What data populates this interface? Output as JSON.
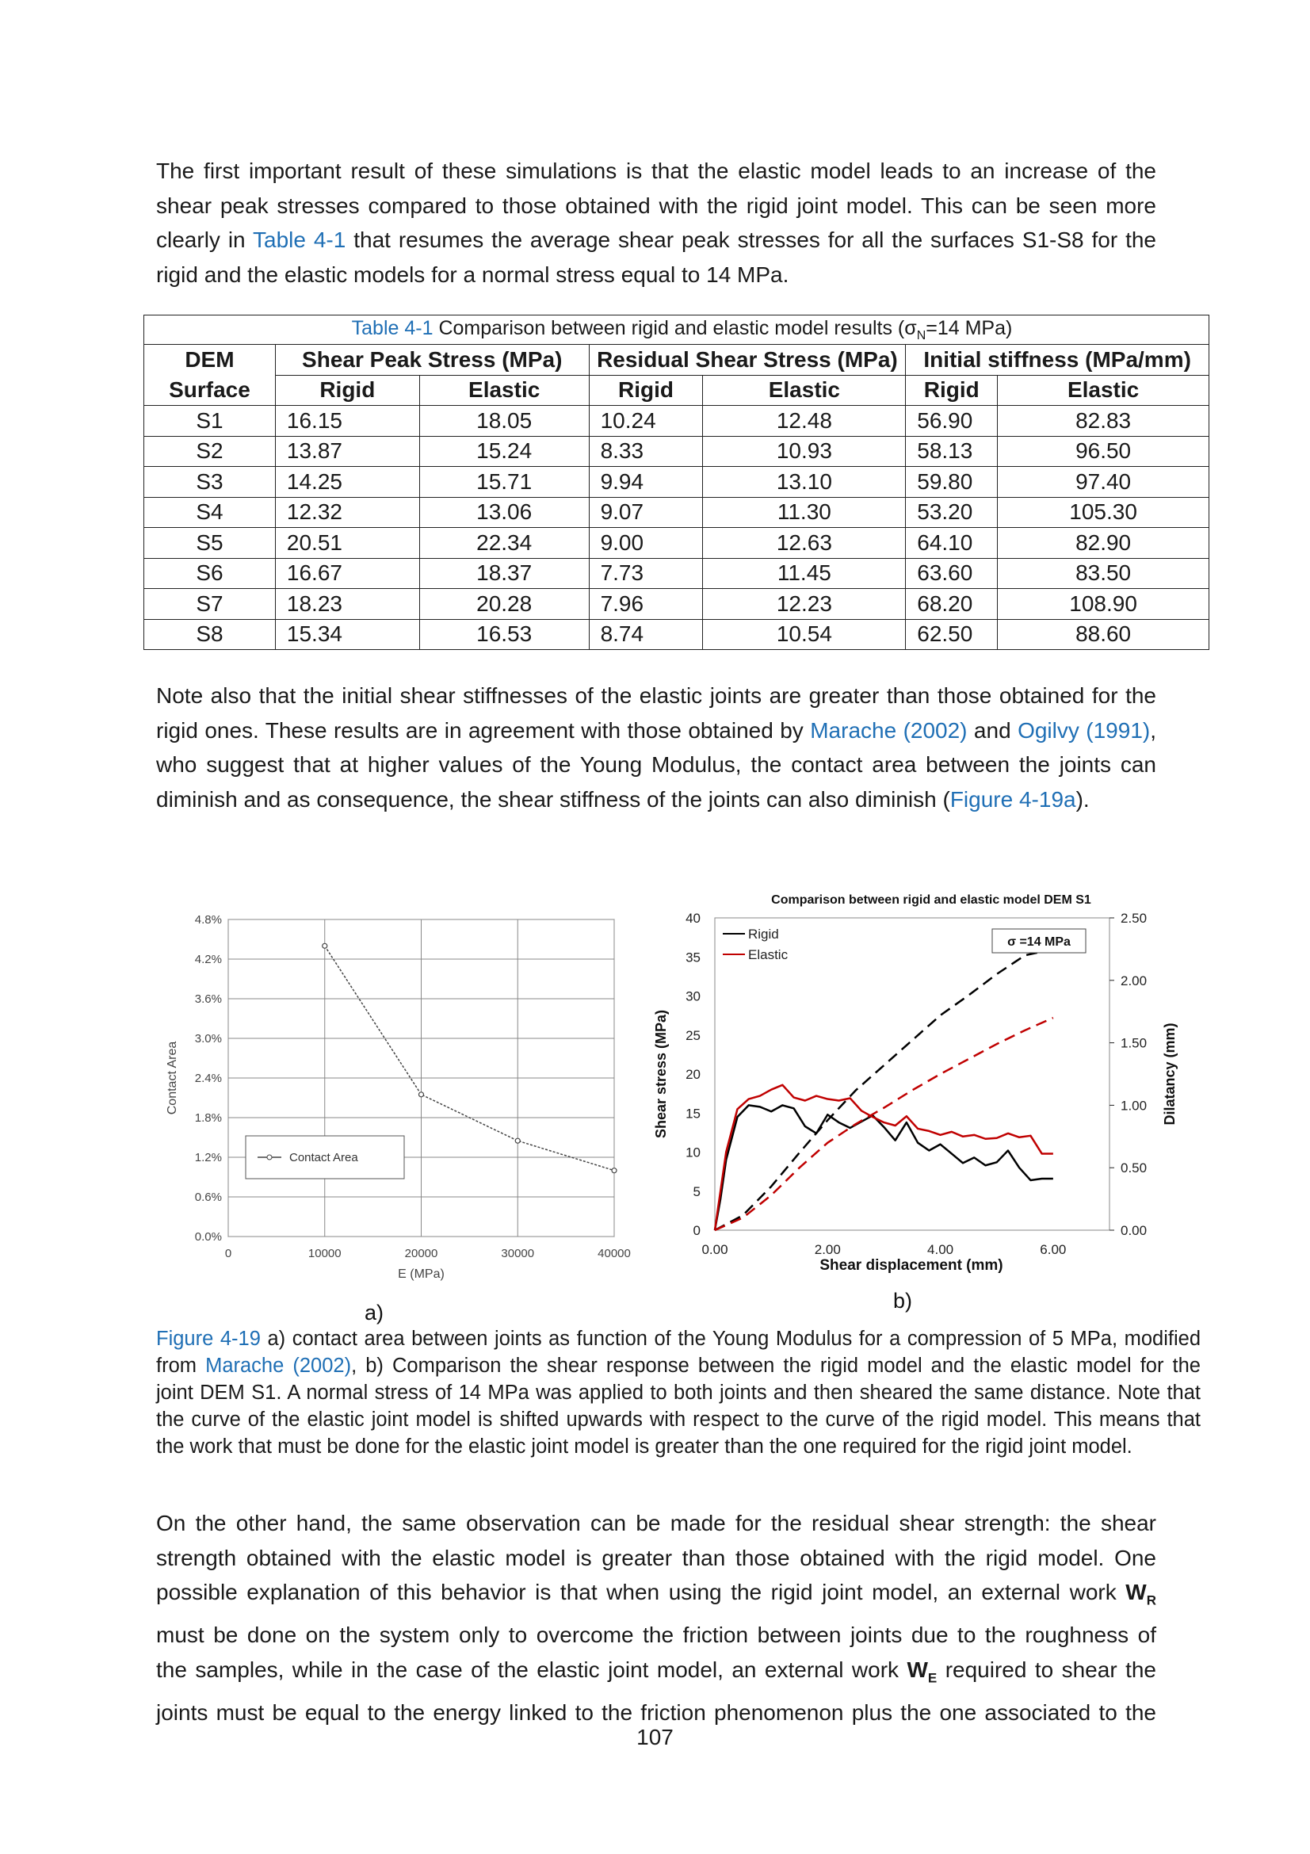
{
  "para1": {
    "l1": "The first important result of these simulations is that the elastic model leads to an increase of the",
    "l2": "shear peak stresses compared to those obtained with the rigid joint model. This can be seen more",
    "l3a": "clearly in ",
    "l3link": "Table 4-1",
    "l3b": " that resumes the average shear peak stresses for all the surfaces S1-S8 for the",
    "l4": "rigid and the elastic models for a normal stress equal to 14 MPa."
  },
  "table": {
    "caption_label": "Table 4-1",
    "caption_text": " Comparison between rigid and elastic model results (",
    "caption_sigma": "σ",
    "caption_sub": "N",
    "caption_end": "=14 MPa)",
    "col_dem1": "DEM",
    "col_dem2": "Surface",
    "group1": "Shear Peak Stress (MPa)",
    "group2": "Residual Shear Stress (MPa)",
    "group3": "Initial stiffness (MPa/mm)",
    "sub_rigid": "Rigid",
    "sub_elastic": "Elastic",
    "rows": [
      [
        "S1",
        "16.15",
        "18.05",
        "10.24",
        "12.48",
        "56.90",
        "82.83"
      ],
      [
        "S2",
        "13.87",
        "15.24",
        "8.33",
        "10.93",
        "58.13",
        "96.50"
      ],
      [
        "S3",
        "14.25",
        "15.71",
        "9.94",
        "13.10",
        "59.80",
        "97.40"
      ],
      [
        "S4",
        "12.32",
        "13.06",
        "9.07",
        "11.30",
        "53.20",
        "105.30"
      ],
      [
        "S5",
        "20.51",
        "22.34",
        "9.00",
        "12.63",
        "64.10",
        "82.90"
      ],
      [
        "S6",
        "16.67",
        "18.37",
        "7.73",
        "11.45",
        "63.60",
        "83.50"
      ],
      [
        "S7",
        "18.23",
        "20.28",
        "7.96",
        "12.23",
        "68.20",
        "108.90"
      ],
      [
        "S8",
        "15.34",
        "16.53",
        "8.74",
        "10.54",
        "62.50",
        "88.60"
      ]
    ]
  },
  "para2": {
    "l1": "Note also that the initial shear stiffnesses of the elastic joints are greater than those obtained for the",
    "l2a": "rigid ones. These results are in agreement with those obtained by ",
    "l2link1": "Marache (2002)",
    "l2b": " and ",
    "l2link2": "Ogilvy (1991)",
    "l2c": ",",
    "l3": "who suggest that at higher values of the Young Modulus, the contact area between the joints can",
    "l4a": "diminish and as consequence, the shear stiffness of the joints can also diminish (",
    "l4link": "Figure 4-19a",
    "l4b": ")."
  },
  "chart_data": [
    {
      "type": "line",
      "panel_label": "a)",
      "xlabel": "E (MPa)",
      "ylabel": "Contact Area",
      "xlim": [
        0,
        40000
      ],
      "ylim": [
        0,
        4.8
      ],
      "x_ticks": [
        "0",
        "10000",
        "20000",
        "30000",
        "40000"
      ],
      "y_ticks": [
        "0.0%",
        "0.6%",
        "1.2%",
        "1.8%",
        "2.4%",
        "3.0%",
        "3.6%",
        "4.2%",
        "4.8%"
      ],
      "grid": true,
      "legend_position": "bottom-left",
      "color": "#444444",
      "series": [
        {
          "name": "Contact Area",
          "x": [
            10000,
            20000,
            30000,
            40000
          ],
          "y": [
            4.4,
            2.15,
            1.45,
            1.0
          ]
        }
      ]
    },
    {
      "type": "line",
      "panel_label": "b)",
      "title": "Comparison between rigid and elastic model DEM S1",
      "xlabel": "Shear displacement (mm)",
      "ylabel": "Shear stress (MPa)",
      "y2label": "Dilatancy (mm)",
      "xlim": [
        0,
        7
      ],
      "ylim": [
        0,
        40
      ],
      "y2lim": [
        0,
        2.5
      ],
      "x_ticks": [
        "0.00",
        "2.00",
        "4.00",
        "6.00"
      ],
      "y_ticks": [
        "0",
        "5",
        "10",
        "15",
        "20",
        "25",
        "30",
        "35",
        "40"
      ],
      "y2_ticks": [
        "0.00",
        "0.50",
        "1.00",
        "1.50",
        "2.00",
        "2.50"
      ],
      "annotation": "σ =14 MPa",
      "legend_position": "top-left",
      "grid": false,
      "colors": {
        "rigid": "#000000",
        "elastic": "#c00000"
      },
      "series": [
        {
          "name": "Rigid",
          "axis": "left",
          "x": [
            0,
            0.1,
            0.2,
            0.4,
            0.6,
            0.8,
            1.0,
            1.2,
            1.4,
            1.6,
            1.8,
            2.0,
            2.2,
            2.4,
            2.6,
            2.8,
            3.0,
            3.2,
            3.4,
            3.6,
            3.8,
            4.0,
            4.2,
            4.4,
            4.6,
            4.8,
            5.0,
            5.2,
            5.4,
            5.6,
            5.8,
            6.0
          ],
          "y": [
            0,
            4,
            9,
            14.5,
            16,
            15.8,
            15.2,
            16.0,
            15.6,
            13.3,
            12.4,
            14.8,
            13.8,
            13.1,
            13.9,
            14.7,
            13.2,
            11.5,
            13.8,
            11.2,
            10.2,
            11.0,
            9.8,
            8.6,
            9.3,
            8.3,
            8.7,
            10.2,
            8.0,
            6.4,
            6.6,
            6.6
          ]
        },
        {
          "name": "Elastic",
          "axis": "left",
          "x": [
            0,
            0.1,
            0.2,
            0.4,
            0.6,
            0.8,
            1.0,
            1.2,
            1.4,
            1.6,
            1.8,
            2.0,
            2.2,
            2.4,
            2.6,
            2.8,
            3.0,
            3.2,
            3.4,
            3.6,
            3.8,
            4.0,
            4.2,
            4.4,
            4.6,
            4.8,
            5.0,
            5.2,
            5.4,
            5.6,
            5.8,
            6.0
          ],
          "y": [
            0,
            5,
            10,
            15.5,
            16.8,
            17.2,
            18.0,
            18.6,
            17.0,
            16.6,
            17.2,
            16.8,
            16.6,
            16.9,
            15.3,
            14.5,
            13.8,
            13.4,
            14.6,
            13.0,
            12.7,
            12.2,
            12.6,
            12.0,
            12.2,
            11.7,
            11.8,
            12.4,
            11.9,
            12.1,
            9.8,
            9.8
          ]
        },
        {
          "name": "Rigid dilatancy",
          "axis": "right",
          "dashed": true,
          "x": [
            0,
            0.5,
            1.0,
            1.5,
            2.0,
            2.5,
            3.0,
            3.5,
            4.0,
            4.5,
            5.0,
            5.5,
            6.0
          ],
          "y": [
            0,
            0.12,
            0.35,
            0.62,
            0.88,
            1.12,
            1.32,
            1.52,
            1.72,
            1.88,
            2.05,
            2.2,
            2.25
          ]
        },
        {
          "name": "Elastic dilatancy",
          "axis": "right",
          "dashed": true,
          "x": [
            0,
            0.5,
            1.0,
            1.5,
            2.0,
            2.5,
            3.0,
            3.5,
            4.0,
            4.5,
            5.0,
            5.5,
            6.0
          ],
          "y": [
            0,
            0.1,
            0.28,
            0.5,
            0.7,
            0.85,
            0.98,
            1.12,
            1.25,
            1.37,
            1.49,
            1.6,
            1.7
          ]
        }
      ]
    }
  ],
  "figcap": {
    "l1label": "Figure 4-19",
    "l1": " a) contact area between joints as function of the Young Modulus for a compression of 5 MPa, modified",
    "l2a": "from ",
    "l2link": "Marache (2002)",
    "l2b": ", b) Comparison the shear response between the rigid model and the elastic model for the",
    "l3": "joint DEM S1. A normal stress of 14 MPa was applied to both joints and then sheared the same distance. Note that",
    "l4": "the curve of the elastic joint model is shifted upwards with respect to the curve of the rigid model. This means that",
    "l5": "the work that must be done for the elastic joint model is greater than the one required for the rigid joint model."
  },
  "para3": {
    "l1": "On the other hand, the same observation can be made for the residual shear strength: the shear",
    "l2": "strength obtained with the elastic model is greater than those obtained with the rigid model. One",
    "l3a": "possible explanation of this behavior is that when using the rigid joint model, an external work ",
    "l3bold": "W",
    "l3sub": "R",
    "l4": "must be done on the system only to overcome the friction between joints due to the roughness of",
    "l5a": "the samples, while in the case of the elastic joint model, an external work ",
    "l5bold": "W",
    "l5sub": "E",
    "l5b": " required to shear the",
    "l6": "joints must be equal to the energy linked to the friction phenomenon plus the one associated to the"
  },
  "page_number": "107"
}
